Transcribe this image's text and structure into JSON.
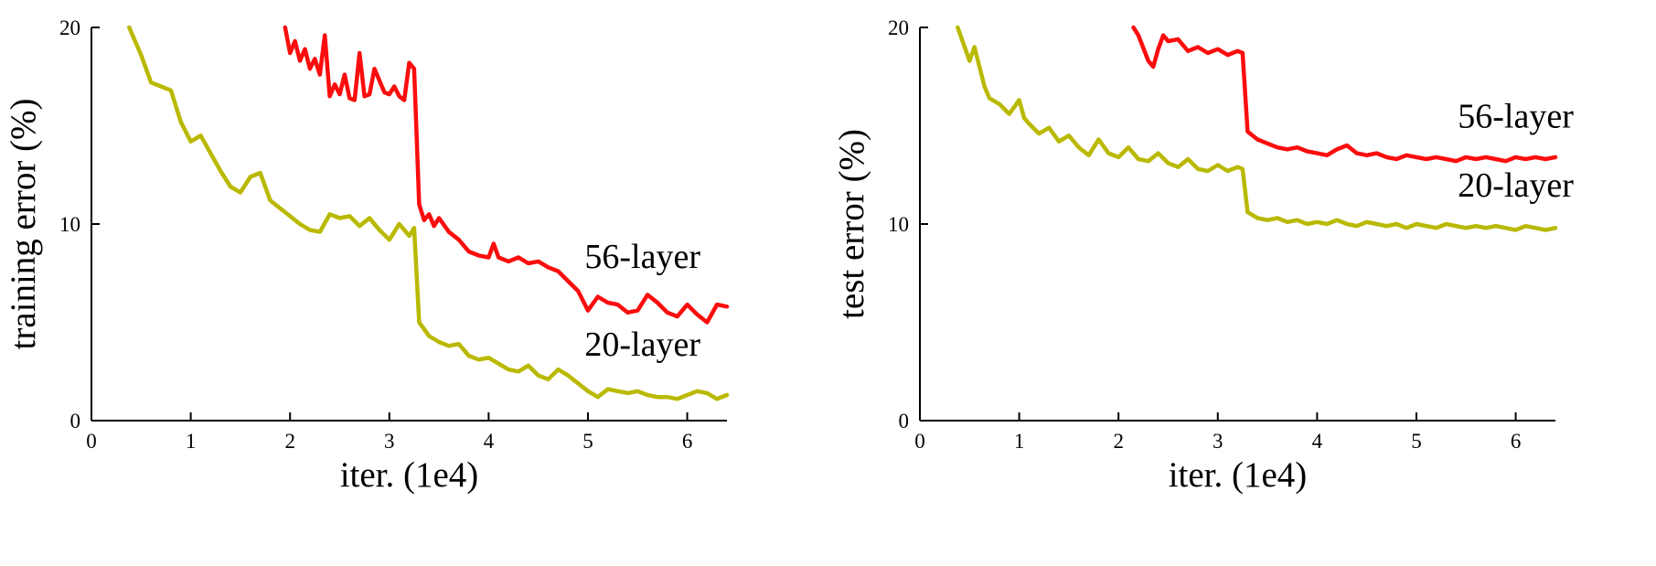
{
  "figure": {
    "background": "#ffffff",
    "text_color": "#000000",
    "axis_color": "#000000"
  },
  "chart_data": [
    {
      "type": "line",
      "title": "",
      "xlabel": "iter. (1e4)",
      "ylabel": "training error (%)",
      "xlim": [
        0,
        6.4
      ],
      "ylim": [
        0,
        20
      ],
      "xticks": [
        0,
        1,
        2,
        3,
        4,
        5,
        6
      ],
      "yticks": [
        0,
        10,
        20
      ],
      "grid": false,
      "legend_position": "none",
      "series": [
        {
          "name": "56-layer",
          "color": "#fb0d0d",
          "x": [
            1.95,
            2.0,
            2.05,
            2.1,
            2.15,
            2.2,
            2.25,
            2.3,
            2.35,
            2.4,
            2.45,
            2.5,
            2.55,
            2.6,
            2.65,
            2.7,
            2.75,
            2.8,
            2.85,
            2.9,
            2.95,
            3.0,
            3.05,
            3.1,
            3.15,
            3.2,
            3.25,
            3.3,
            3.35,
            3.4,
            3.45,
            3.5,
            3.6,
            3.7,
            3.8,
            3.9,
            4.0,
            4.05,
            4.1,
            4.2,
            4.3,
            4.4,
            4.5,
            4.6,
            4.7,
            4.8,
            4.9,
            5.0,
            5.1,
            5.2,
            5.3,
            5.4,
            5.5,
            5.6,
            5.7,
            5.8,
            5.9,
            6.0,
            6.1,
            6.2,
            6.3,
            6.4
          ],
          "y": [
            20,
            18.7,
            19.3,
            18.3,
            18.9,
            17.9,
            18.4,
            17.6,
            19.6,
            16.5,
            17.1,
            16.6,
            17.6,
            16.4,
            16.3,
            18.7,
            16.5,
            16.6,
            17.9,
            17.3,
            16.7,
            16.6,
            17.0,
            16.5,
            16.3,
            18.2,
            17.9,
            11.0,
            10.2,
            10.5,
            9.9,
            10.3,
            9.6,
            9.2,
            8.6,
            8.4,
            8.3,
            9.0,
            8.3,
            8.1,
            8.3,
            8.0,
            8.1,
            7.8,
            7.6,
            7.1,
            6.6,
            5.6,
            6.3,
            6.0,
            5.9,
            5.5,
            5.6,
            6.4,
            6.0,
            5.5,
            5.3,
            5.9,
            5.4,
            5.0,
            5.9,
            5.8
          ]
        },
        {
          "name": "20-layer",
          "color": "#b9b900",
          "x": [
            0.38,
            0.5,
            0.6,
            0.7,
            0.8,
            0.9,
            1.0,
            1.1,
            1.2,
            1.3,
            1.4,
            1.5,
            1.6,
            1.7,
            1.8,
            1.9,
            2.0,
            2.1,
            2.2,
            2.3,
            2.4,
            2.5,
            2.6,
            2.7,
            2.8,
            2.9,
            3.0,
            3.1,
            3.2,
            3.25,
            3.3,
            3.4,
            3.5,
            3.6,
            3.7,
            3.8,
            3.9,
            4.0,
            4.1,
            4.2,
            4.3,
            4.4,
            4.5,
            4.6,
            4.7,
            4.8,
            4.9,
            5.0,
            5.1,
            5.2,
            5.3,
            5.4,
            5.5,
            5.6,
            5.7,
            5.8,
            5.9,
            6.0,
            6.1,
            6.2,
            6.3,
            6.4
          ],
          "y": [
            20,
            18.6,
            17.2,
            17.0,
            16.8,
            15.2,
            14.2,
            14.5,
            13.6,
            12.7,
            11.9,
            11.6,
            12.4,
            12.6,
            11.2,
            10.8,
            10.4,
            10.0,
            9.7,
            9.6,
            10.5,
            10.3,
            10.4,
            9.9,
            10.3,
            9.7,
            9.2,
            10.0,
            9.4,
            9.8,
            5.0,
            4.3,
            4.0,
            3.8,
            3.9,
            3.3,
            3.1,
            3.2,
            2.9,
            2.6,
            2.5,
            2.8,
            2.3,
            2.1,
            2.6,
            2.3,
            1.9,
            1.5,
            1.2,
            1.6,
            1.5,
            1.4,
            1.5,
            1.3,
            1.2,
            1.2,
            1.1,
            1.3,
            1.5,
            1.4,
            1.1,
            1.3
          ]
        }
      ],
      "annotations": [
        {
          "text": "56-layer",
          "x": 5.55,
          "y": 7.76
        },
        {
          "text": "20-layer",
          "x": 5.55,
          "y": 3.3
        }
      ]
    },
    {
      "type": "line",
      "title": "",
      "xlabel": "iter. (1e4)",
      "ylabel": "test error (%)",
      "xlim": [
        0,
        6.4
      ],
      "ylim": [
        0,
        20
      ],
      "xticks": [
        0,
        1,
        2,
        3,
        4,
        5,
        6
      ],
      "yticks": [
        0,
        10,
        20
      ],
      "grid": false,
      "legend_position": "none",
      "series": [
        {
          "name": "56-layer",
          "color": "#fb0d0d",
          "x": [
            2.15,
            2.2,
            2.3,
            2.35,
            2.4,
            2.45,
            2.5,
            2.6,
            2.7,
            2.8,
            2.9,
            3.0,
            3.1,
            3.2,
            3.25,
            3.3,
            3.4,
            3.5,
            3.6,
            3.7,
            3.8,
            3.9,
            4.0,
            4.1,
            4.2,
            4.3,
            4.4,
            4.5,
            4.6,
            4.7,
            4.8,
            4.9,
            5.0,
            5.1,
            5.2,
            5.3,
            5.4,
            5.5,
            5.6,
            5.7,
            5.8,
            5.9,
            6.0,
            6.1,
            6.2,
            6.3,
            6.4
          ],
          "y": [
            20,
            19.6,
            18.3,
            18.0,
            18.9,
            19.6,
            19.3,
            19.4,
            18.8,
            19.0,
            18.7,
            18.9,
            18.6,
            18.8,
            18.7,
            14.7,
            14.3,
            14.1,
            13.9,
            13.8,
            13.9,
            13.7,
            13.6,
            13.5,
            13.8,
            14.0,
            13.6,
            13.5,
            13.6,
            13.4,
            13.3,
            13.5,
            13.4,
            13.3,
            13.4,
            13.3,
            13.2,
            13.4,
            13.3,
            13.4,
            13.3,
            13.2,
            13.4,
            13.3,
            13.4,
            13.3,
            13.4
          ]
        },
        {
          "name": "20-layer",
          "color": "#b9b900",
          "x": [
            0.38,
            0.5,
            0.55,
            0.65,
            0.7,
            0.8,
            0.9,
            1.0,
            1.05,
            1.1,
            1.2,
            1.3,
            1.4,
            1.5,
            1.6,
            1.7,
            1.8,
            1.9,
            2.0,
            2.1,
            2.2,
            2.3,
            2.4,
            2.5,
            2.6,
            2.7,
            2.8,
            2.9,
            3.0,
            3.1,
            3.2,
            3.25,
            3.3,
            3.4,
            3.5,
            3.6,
            3.7,
            3.8,
            3.9,
            4.0,
            4.1,
            4.2,
            4.3,
            4.4,
            4.5,
            4.6,
            4.7,
            4.8,
            4.9,
            5.0,
            5.1,
            5.2,
            5.3,
            5.4,
            5.5,
            5.6,
            5.7,
            5.8,
            5.9,
            6.0,
            6.1,
            6.2,
            6.3,
            6.4
          ],
          "y": [
            20,
            18.3,
            19.0,
            17.0,
            16.4,
            16.1,
            15.6,
            16.3,
            15.4,
            15.1,
            14.6,
            14.9,
            14.2,
            14.5,
            13.9,
            13.5,
            14.3,
            13.6,
            13.4,
            13.9,
            13.3,
            13.2,
            13.6,
            13.1,
            12.9,
            13.3,
            12.8,
            12.7,
            13.0,
            12.7,
            12.9,
            12.8,
            10.6,
            10.3,
            10.2,
            10.3,
            10.1,
            10.2,
            10.0,
            10.1,
            10.0,
            10.2,
            10.0,
            9.9,
            10.1,
            10.0,
            9.9,
            10.0,
            9.8,
            10.0,
            9.9,
            9.8,
            10.0,
            9.9,
            9.8,
            9.9,
            9.8,
            9.9,
            9.8,
            9.7,
            9.9,
            9.8,
            9.7,
            9.8
          ]
        }
      ],
      "annotations": [
        {
          "text": "56-layer",
          "x": 6.0,
          "y": 14.9
        },
        {
          "text": "20-layer",
          "x": 6.0,
          "y": 11.4
        }
      ]
    }
  ]
}
